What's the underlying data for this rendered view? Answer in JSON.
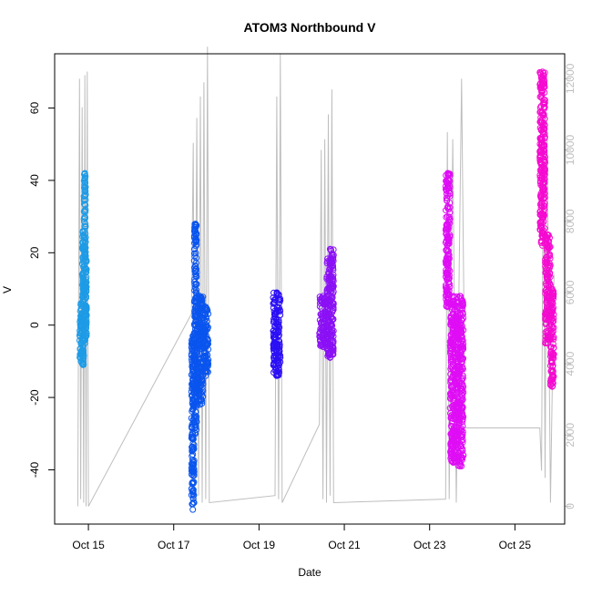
{
  "chart_data": {
    "type": "scatter",
    "title": "ATOM3 Northbound V",
    "xlabel": "Date",
    "ylabel": "V",
    "x_axis": {
      "type": "date",
      "range": [
        "2024-10-14T05:00",
        "2024-10-26T04:00"
      ],
      "ticks": [
        {
          "value": "2024-10-15T00:00",
          "label": "Oct 15"
        },
        {
          "value": "2024-10-17T00:00",
          "label": "Oct 17"
        },
        {
          "value": "2024-10-19T00:00",
          "label": "Oct 19"
        },
        {
          "value": "2024-10-21T00:00",
          "label": "Oct 21"
        },
        {
          "value": "2024-10-23T00:00",
          "label": "Oct 23"
        },
        {
          "value": "2024-10-25T00:00",
          "label": "Oct 25"
        }
      ]
    },
    "y_axis_left": {
      "range": [
        -55,
        75
      ],
      "ticks": [
        -40,
        -20,
        0,
        20,
        40,
        60
      ]
    },
    "y_axis_right": {
      "range": [
        -500,
        12700
      ],
      "ticks": [
        0,
        2000,
        4000,
        6000,
        8000,
        10000,
        12000
      ],
      "color": "#bebebe"
    },
    "grid": false,
    "series": [
      {
        "axis": "left",
        "marker": "circle-open",
        "clusters": [
          {
            "x_start": "2024-10-14T19:00",
            "x_end": "2024-10-14T23:00",
            "color": "#1e9be6",
            "segments": [
              {
                "x_start": "2024-10-14T19:00",
                "x_end": "2024-10-14T20:30",
                "y_min": -10,
                "y_max": 6
              },
              {
                "x_start": "2024-10-14T20:30",
                "x_end": "2024-10-14T21:30",
                "y_min": -11,
                "y_max": 26
              },
              {
                "x_start": "2024-10-14T21:30",
                "x_end": "2024-10-14T22:30",
                "y_min": -5,
                "y_max": 42
              },
              {
                "x_start": "2024-10-14T22:30",
                "x_end": "2024-10-14T23:00",
                "y_min": -3,
                "y_max": 18
              }
            ]
          },
          {
            "x_start": "2024-10-17T10:00",
            "x_end": "2024-10-17T19:30",
            "color": "#0a55ee",
            "segments": [
              {
                "x_start": "2024-10-17T10:00",
                "x_end": "2024-10-17T11:30",
                "y_min": -51,
                "y_max": -3
              },
              {
                "x_start": "2024-10-17T11:30",
                "x_end": "2024-10-17T13:00",
                "y_min": -30,
                "y_max": 28
              },
              {
                "x_start": "2024-10-17T13:00",
                "x_end": "2024-10-17T16:30",
                "y_min": -22,
                "y_max": 8
              },
              {
                "x_start": "2024-10-17T16:30",
                "x_end": "2024-10-17T19:30",
                "y_min": -14,
                "y_max": 5
              }
            ]
          },
          {
            "x_start": "2024-10-19T08:00",
            "x_end": "2024-10-19T12:00",
            "color": "#2b0ff5",
            "segments": [
              {
                "x_start": "2024-10-19T08:00",
                "x_end": "2024-10-19T12:00",
                "y_min": -14,
                "y_max": 9
              }
            ]
          },
          {
            "x_start": "2024-10-20T10:00",
            "x_end": "2024-10-20T18:00",
            "color": "#8b10f5",
            "segments": [
              {
                "x_start": "2024-10-20T10:00",
                "x_end": "2024-10-20T14:00",
                "y_min": -6,
                "y_max": 8
              },
              {
                "x_start": "2024-10-20T14:00",
                "x_end": "2024-10-20T18:00",
                "y_min": -9,
                "y_max": 21
              }
            ]
          },
          {
            "x_start": "2024-10-23T09:00",
            "x_end": "2024-10-23T19:00",
            "color": "#df0df5",
            "segments": [
              {
                "x_start": "2024-10-23T09:00",
                "x_end": "2024-10-23T11:30",
                "y_min": 5,
                "y_max": 42
              },
              {
                "x_start": "2024-10-23T11:30",
                "x_end": "2024-10-23T15:00",
                "y_min": -38,
                "y_max": 8
              },
              {
                "x_start": "2024-10-23T15:00",
                "x_end": "2024-10-23T19:00",
                "y_min": -39,
                "y_max": 8
              }
            ]
          },
          {
            "x_start": "2024-10-25T14:00",
            "x_end": "2024-10-25T22:00",
            "color": "#f50ad0",
            "segments": [
              {
                "x_start": "2024-10-25T14:00",
                "x_end": "2024-10-25T17:00",
                "y_min": 22,
                "y_max": 70
              },
              {
                "x_start": "2024-10-25T17:00",
                "x_end": "2024-10-25T20:00",
                "y_min": -5,
                "y_max": 25
              },
              {
                "x_start": "2024-10-25T20:00",
                "x_end": "2024-10-25T22:00",
                "y_min": -17,
                "y_max": 10
              }
            ]
          }
        ]
      },
      {
        "axis": "right",
        "type": "line",
        "color": "#bebebe",
        "points": [
          [
            "2024-10-14T18:00",
            0
          ],
          [
            "2024-10-14T19:00",
            12000
          ],
          [
            "2024-10-14T19:40",
            200
          ],
          [
            "2024-10-14T20:30",
            11200
          ],
          [
            "2024-10-14T21:20",
            100
          ],
          [
            "2024-10-14T22:00",
            12100
          ],
          [
            "2024-10-14T22:40",
            0
          ],
          [
            "2024-10-14T23:20",
            12200
          ],
          [
            "2024-10-15T00:00",
            0
          ],
          [
            "2024-10-17T10:00",
            5400
          ],
          [
            "2024-10-17T11:00",
            10200
          ],
          [
            "2024-10-17T11:40",
            200
          ],
          [
            "2024-10-17T13:00",
            10900
          ],
          [
            "2024-10-17T14:00",
            300
          ],
          [
            "2024-10-17T15:00",
            11500
          ],
          [
            "2024-10-17T16:00",
            100
          ],
          [
            "2024-10-17T17:00",
            11900
          ],
          [
            "2024-10-17T18:00",
            200
          ],
          [
            "2024-10-17T19:00",
            12900
          ],
          [
            "2024-10-17T20:00",
            100
          ],
          [
            "2024-10-19T09:00",
            300
          ],
          [
            "2024-10-19T10:00",
            11500
          ],
          [
            "2024-10-19T11:00",
            200
          ],
          [
            "2024-10-19T12:00",
            12700
          ],
          [
            "2024-10-19T13:00",
            100
          ],
          [
            "2024-10-20T10:00",
            2300
          ],
          [
            "2024-10-20T11:00",
            10000
          ],
          [
            "2024-10-20T12:00",
            200
          ],
          [
            "2024-10-20T13:00",
            10300
          ],
          [
            "2024-10-20T14:00",
            100
          ],
          [
            "2024-10-20T15:00",
            11000
          ],
          [
            "2024-10-20T16:00",
            300
          ],
          [
            "2024-10-20T17:00",
            11700
          ],
          [
            "2024-10-20T18:00",
            100
          ],
          [
            "2024-10-23T09:00",
            200
          ],
          [
            "2024-10-23T10:00",
            10500
          ],
          [
            "2024-10-23T11:00",
            200
          ],
          [
            "2024-10-23T13:00",
            10300
          ],
          [
            "2024-10-23T15:00",
            100
          ],
          [
            "2024-10-23T18:00",
            12000
          ],
          [
            "2024-10-23T20:00",
            2200
          ],
          [
            "2024-10-25T14:00",
            2200
          ],
          [
            "2024-10-25T15:00",
            1000
          ],
          [
            "2024-10-25T16:00",
            10500
          ],
          [
            "2024-10-25T17:00",
            800
          ],
          [
            "2024-10-25T18:00",
            11000
          ],
          [
            "2024-10-25T20:00",
            100
          ],
          [
            "2024-10-25T22:00",
            6500
          ]
        ]
      }
    ]
  }
}
